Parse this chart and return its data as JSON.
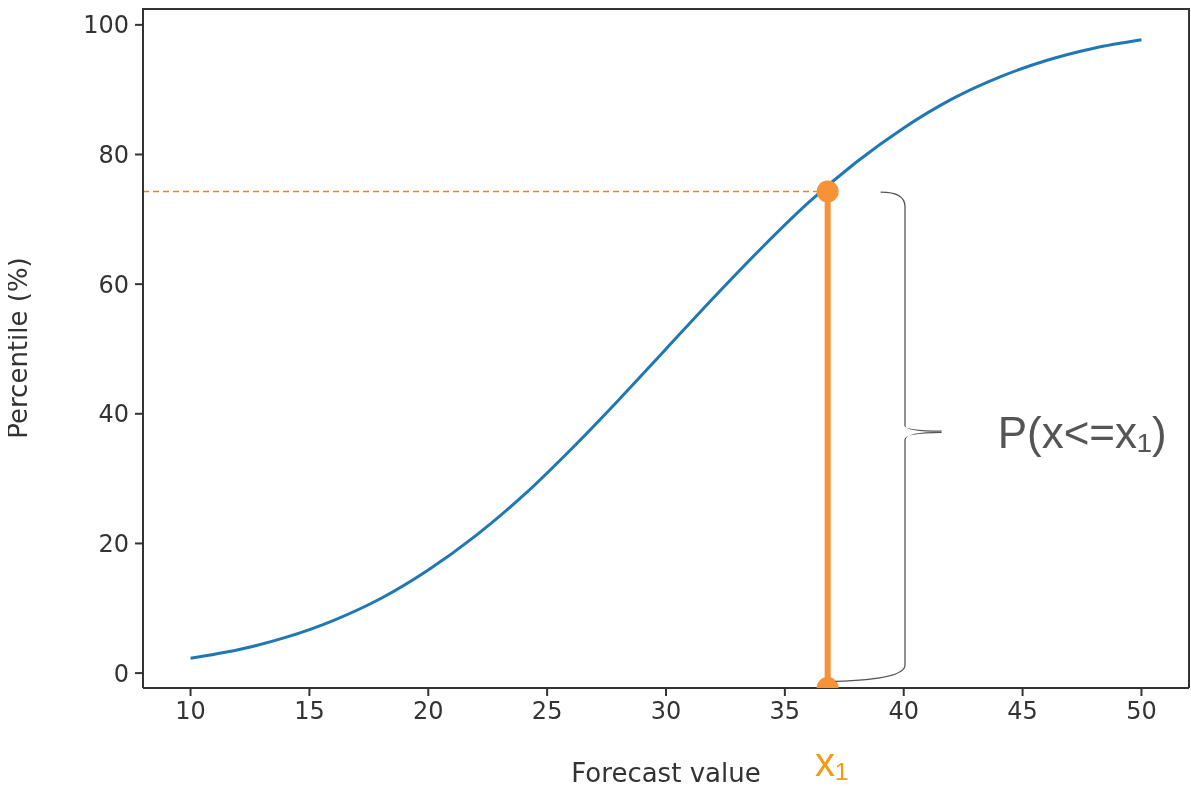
{
  "chart_data": {
    "type": "line",
    "xlabel": "Forecast value",
    "ylabel": "Percentile (%)",
    "xlim": [
      8,
      52
    ],
    "ylim": [
      -2.3,
      102.6
    ],
    "xticks": [
      10,
      15,
      20,
      25,
      30,
      35,
      40,
      45,
      50
    ],
    "yticks": [
      0,
      20,
      40,
      60,
      80,
      100
    ],
    "series": [
      {
        "color": "#1f77b4",
        "marker": "none",
        "line_style": "solid",
        "x": [
          10,
          12,
          14,
          16,
          18,
          20,
          22,
          24,
          26,
          28,
          30,
          32,
          34,
          36,
          38,
          40,
          42,
          44,
          46,
          48,
          50
        ],
        "values": [
          2.3,
          3.6,
          5.5,
          8.1,
          11.5,
          15.9,
          21.2,
          27.4,
          34.5,
          42.1,
          50,
          57.9,
          65.5,
          72.6,
          78.8,
          84.1,
          88.5,
          91.9,
          94.5,
          96.4,
          97.7
        ]
      },
      {
        "color": "#ff7f0e",
        "marker": "none",
        "line_style": "dashed",
        "x": [
          8,
          36.8
        ],
        "values": [
          74.3,
          74.3
        ]
      },
      {
        "color": "#f79239",
        "marker": "circle",
        "line_style": "solid",
        "x": [
          36.8,
          36.8
        ],
        "values": [
          -2.3,
          74.3
        ]
      }
    ],
    "annotations": [
      "P(x<=x₁)",
      "x₁"
    ]
  }
}
